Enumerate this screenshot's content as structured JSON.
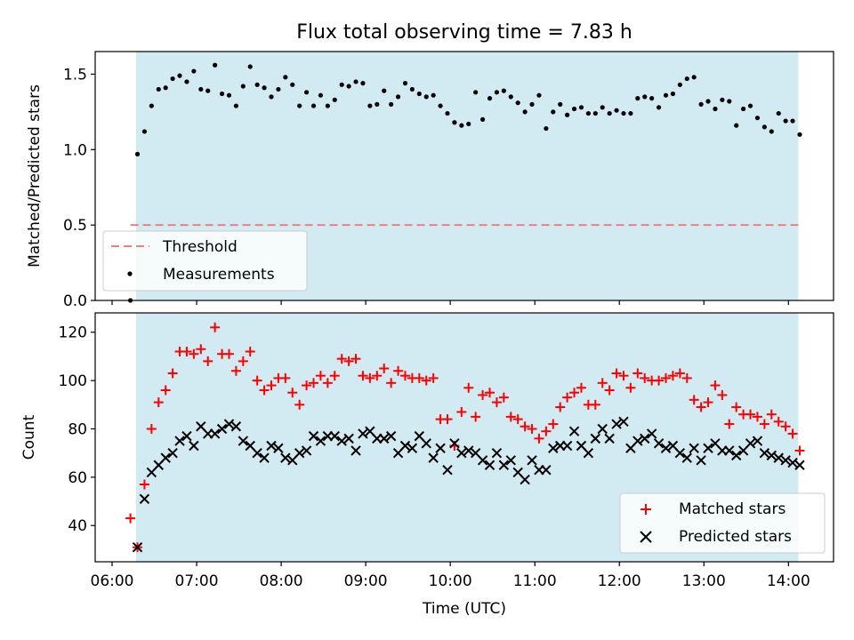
{
  "title": "Flux total observing time = 7.83 h",
  "colors": {
    "observing_band": "#add8e6",
    "threshold": "#f08080",
    "measurements": "#000000",
    "matched": "#ff0000",
    "predicted": "#000000"
  },
  "chart_data": [
    {
      "type": "scatter",
      "title": "Flux total observing time = 7.83 h",
      "ylabel": "Matched/Predicted stars",
      "xlabel": "",
      "ylim": [
        0,
        1.65
      ],
      "yticks": [
        "0.0",
        "0.5",
        "1.0",
        "1.5"
      ],
      "xlim": [
        "05:48",
        "14:32"
      ],
      "observing_window": [
        "06:17",
        "14:07"
      ],
      "legend_position": "lower-left",
      "threshold": {
        "name": "Threshold",
        "value": 0.5,
        "style": "dashed"
      },
      "series": [
        {
          "name": "Measurements",
          "marker": "dot",
          "x": [
            "06:13",
            "06:18",
            "06:23",
            "06:28",
            "06:33",
            "06:38",
            "06:43",
            "06:48",
            "06:53",
            "06:58",
            "07:03",
            "07:08",
            "07:13",
            "07:18",
            "07:23",
            "07:28",
            "07:33",
            "07:38",
            "07:43",
            "07:48",
            "07:53",
            "07:58",
            "08:03",
            "08:08",
            "08:13",
            "08:18",
            "08:23",
            "08:28",
            "08:33",
            "08:38",
            "08:43",
            "08:48",
            "08:53",
            "08:58",
            "09:03",
            "09:08",
            "09:13",
            "09:18",
            "09:23",
            "09:28",
            "09:33",
            "09:38",
            "09:43",
            "09:48",
            "09:53",
            "09:58",
            "10:03",
            "10:08",
            "10:13",
            "10:18",
            "10:23",
            "10:28",
            "10:33",
            "10:38",
            "10:43",
            "10:48",
            "10:53",
            "10:58",
            "11:03",
            "11:08",
            "11:13",
            "11:18",
            "11:23",
            "11:28",
            "11:33",
            "11:38",
            "11:43",
            "11:48",
            "11:53",
            "11:58",
            "12:03",
            "12:08",
            "12:13",
            "12:18",
            "12:23",
            "12:28",
            "12:33",
            "12:38",
            "12:43",
            "12:48",
            "12:53",
            "12:58",
            "13:03",
            "13:08",
            "13:13",
            "13:18",
            "13:23",
            "13:28",
            "13:33",
            "13:38",
            "13:43",
            "13:48",
            "13:53",
            "13:58",
            "14:03",
            "14:08"
          ],
          "y": [
            0.0,
            0.97,
            1.12,
            1.29,
            1.4,
            1.41,
            1.47,
            1.49,
            1.45,
            1.52,
            1.4,
            1.39,
            1.56,
            1.37,
            1.36,
            1.29,
            1.42,
            1.55,
            1.43,
            1.41,
            1.35,
            1.4,
            1.48,
            1.43,
            1.29,
            1.38,
            1.29,
            1.36,
            1.29,
            1.33,
            1.43,
            1.42,
            1.45,
            1.44,
            1.29,
            1.3,
            1.39,
            1.3,
            1.35,
            1.44,
            1.4,
            1.37,
            1.35,
            1.36,
            1.29,
            1.24,
            1.18,
            1.16,
            1.17,
            1.38,
            1.2,
            1.34,
            1.38,
            1.39,
            1.35,
            1.31,
            1.25,
            1.3,
            1.36,
            1.14,
            1.25,
            1.3,
            1.23,
            1.27,
            1.28,
            1.24,
            1.24,
            1.28,
            1.24,
            1.26,
            1.24,
            1.24,
            1.34,
            1.35,
            1.34,
            1.28,
            1.36,
            1.37,
            1.43,
            1.47,
            1.48,
            1.3,
            1.32,
            1.27,
            1.33,
            1.32,
            1.16,
            1.27,
            1.29,
            1.21,
            1.15,
            1.12,
            1.24,
            1.19,
            1.19,
            1.1
          ]
        }
      ]
    },
    {
      "type": "scatter",
      "ylabel": "Count",
      "xlabel": "Time (UTC)",
      "ylim": [
        25,
        128
      ],
      "yticks": [
        "40",
        "60",
        "80",
        "100",
        "120"
      ],
      "xlim": [
        "05:48",
        "14:32"
      ],
      "xticks": [
        "06:00",
        "07:00",
        "08:00",
        "09:00",
        "10:00",
        "11:00",
        "12:00",
        "13:00",
        "14:00"
      ],
      "observing_window": [
        "06:17",
        "14:07"
      ],
      "legend_position": "lower-right",
      "series": [
        {
          "name": "Matched stars",
          "marker": "plus",
          "x": [
            "06:13",
            "06:18",
            "06:23",
            "06:28",
            "06:33",
            "06:38",
            "06:43",
            "06:48",
            "06:53",
            "06:58",
            "07:03",
            "07:08",
            "07:13",
            "07:18",
            "07:23",
            "07:28",
            "07:33",
            "07:38",
            "07:43",
            "07:48",
            "07:53",
            "07:58",
            "08:03",
            "08:08",
            "08:13",
            "08:18",
            "08:23",
            "08:28",
            "08:33",
            "08:38",
            "08:43",
            "08:48",
            "08:53",
            "08:58",
            "09:03",
            "09:08",
            "09:13",
            "09:18",
            "09:23",
            "09:28",
            "09:33",
            "09:38",
            "09:43",
            "09:48",
            "09:53",
            "09:58",
            "10:03",
            "10:08",
            "10:13",
            "10:18",
            "10:23",
            "10:28",
            "10:33",
            "10:38",
            "10:43",
            "10:48",
            "10:53",
            "10:58",
            "11:03",
            "11:08",
            "11:13",
            "11:18",
            "11:23",
            "11:28",
            "11:33",
            "11:38",
            "11:43",
            "11:48",
            "11:53",
            "11:58",
            "12:03",
            "12:08",
            "12:13",
            "12:18",
            "12:23",
            "12:28",
            "12:33",
            "12:38",
            "12:43",
            "12:48",
            "12:53",
            "12:58",
            "13:03",
            "13:08",
            "13:13",
            "13:18",
            "13:23",
            "13:28",
            "13:33",
            "13:38",
            "13:43",
            "13:48",
            "13:53",
            "13:58",
            "14:03",
            "14:08"
          ],
          "y": [
            43,
            31,
            57,
            80,
            91,
            96,
            103,
            112,
            112,
            111,
            113,
            108,
            122,
            111,
            111,
            104,
            108,
            112,
            100,
            96,
            98,
            101,
            101,
            95,
            90,
            98,
            99,
            102,
            99,
            102,
            109,
            108,
            109,
            102,
            101,
            102,
            105,
            99,
            104,
            102,
            101,
            101,
            100,
            101,
            84,
            84,
            73,
            87,
            97,
            85,
            94,
            95,
            91,
            93,
            85,
            84,
            81,
            80,
            76,
            79,
            82,
            89,
            93,
            95,
            97,
            90,
            90,
            99,
            96,
            103,
            102,
            97,
            103,
            101,
            100,
            100,
            101,
            102,
            103,
            101,
            92,
            89,
            91,
            98,
            94,
            82,
            89,
            86,
            86,
            85,
            82,
            86,
            83,
            81,
            78,
            71
          ]
        },
        {
          "name": "Predicted stars",
          "marker": "x",
          "x": [
            "06:18",
            "06:23",
            "06:28",
            "06:33",
            "06:38",
            "06:43",
            "06:48",
            "06:53",
            "06:58",
            "07:03",
            "07:08",
            "07:13",
            "07:18",
            "07:23",
            "07:28",
            "07:33",
            "07:38",
            "07:43",
            "07:48",
            "07:53",
            "07:58",
            "08:03",
            "08:08",
            "08:13",
            "08:18",
            "08:23",
            "08:28",
            "08:33",
            "08:38",
            "08:43",
            "08:48",
            "08:53",
            "08:58",
            "09:03",
            "09:08",
            "09:13",
            "09:18",
            "09:23",
            "09:28",
            "09:33",
            "09:38",
            "09:43",
            "09:48",
            "09:53",
            "09:58",
            "10:03",
            "10:08",
            "10:13",
            "10:18",
            "10:23",
            "10:28",
            "10:33",
            "10:38",
            "10:43",
            "10:48",
            "10:53",
            "10:58",
            "11:03",
            "11:08",
            "11:13",
            "11:18",
            "11:23",
            "11:28",
            "11:33",
            "11:38",
            "11:43",
            "11:48",
            "11:53",
            "11:58",
            "12:03",
            "12:08",
            "12:13",
            "12:18",
            "12:23",
            "12:28",
            "12:33",
            "12:38",
            "12:43",
            "12:48",
            "12:53",
            "12:58",
            "13:03",
            "13:08",
            "13:13",
            "13:18",
            "13:23",
            "13:28",
            "13:33",
            "13:38",
            "13:43",
            "13:48",
            "13:53",
            "13:58",
            "14:03",
            "14:08"
          ],
          "y": [
            31,
            51,
            62,
            65,
            68,
            70,
            75,
            77,
            73,
            81,
            78,
            78,
            80,
            82,
            81,
            75,
            73,
            70,
            68,
            73,
            72,
            68,
            67,
            70,
            71,
            77,
            75,
            77,
            77,
            75,
            76,
            71,
            78,
            79,
            76,
            76,
            77,
            70,
            73,
            72,
            77,
            74,
            68,
            72,
            63,
            74,
            70,
            71,
            70,
            67,
            65,
            70,
            65,
            67,
            62,
            59,
            67,
            63,
            63,
            72,
            73,
            73,
            79,
            73,
            70,
            76,
            80,
            76,
            82,
            83,
            72,
            75,
            76,
            78,
            74,
            72,
            73,
            70,
            68,
            72,
            67,
            72,
            74,
            71,
            71,
            69,
            71,
            74,
            75,
            70,
            69,
            68,
            67,
            66,
            65
          ]
        }
      ]
    }
  ]
}
